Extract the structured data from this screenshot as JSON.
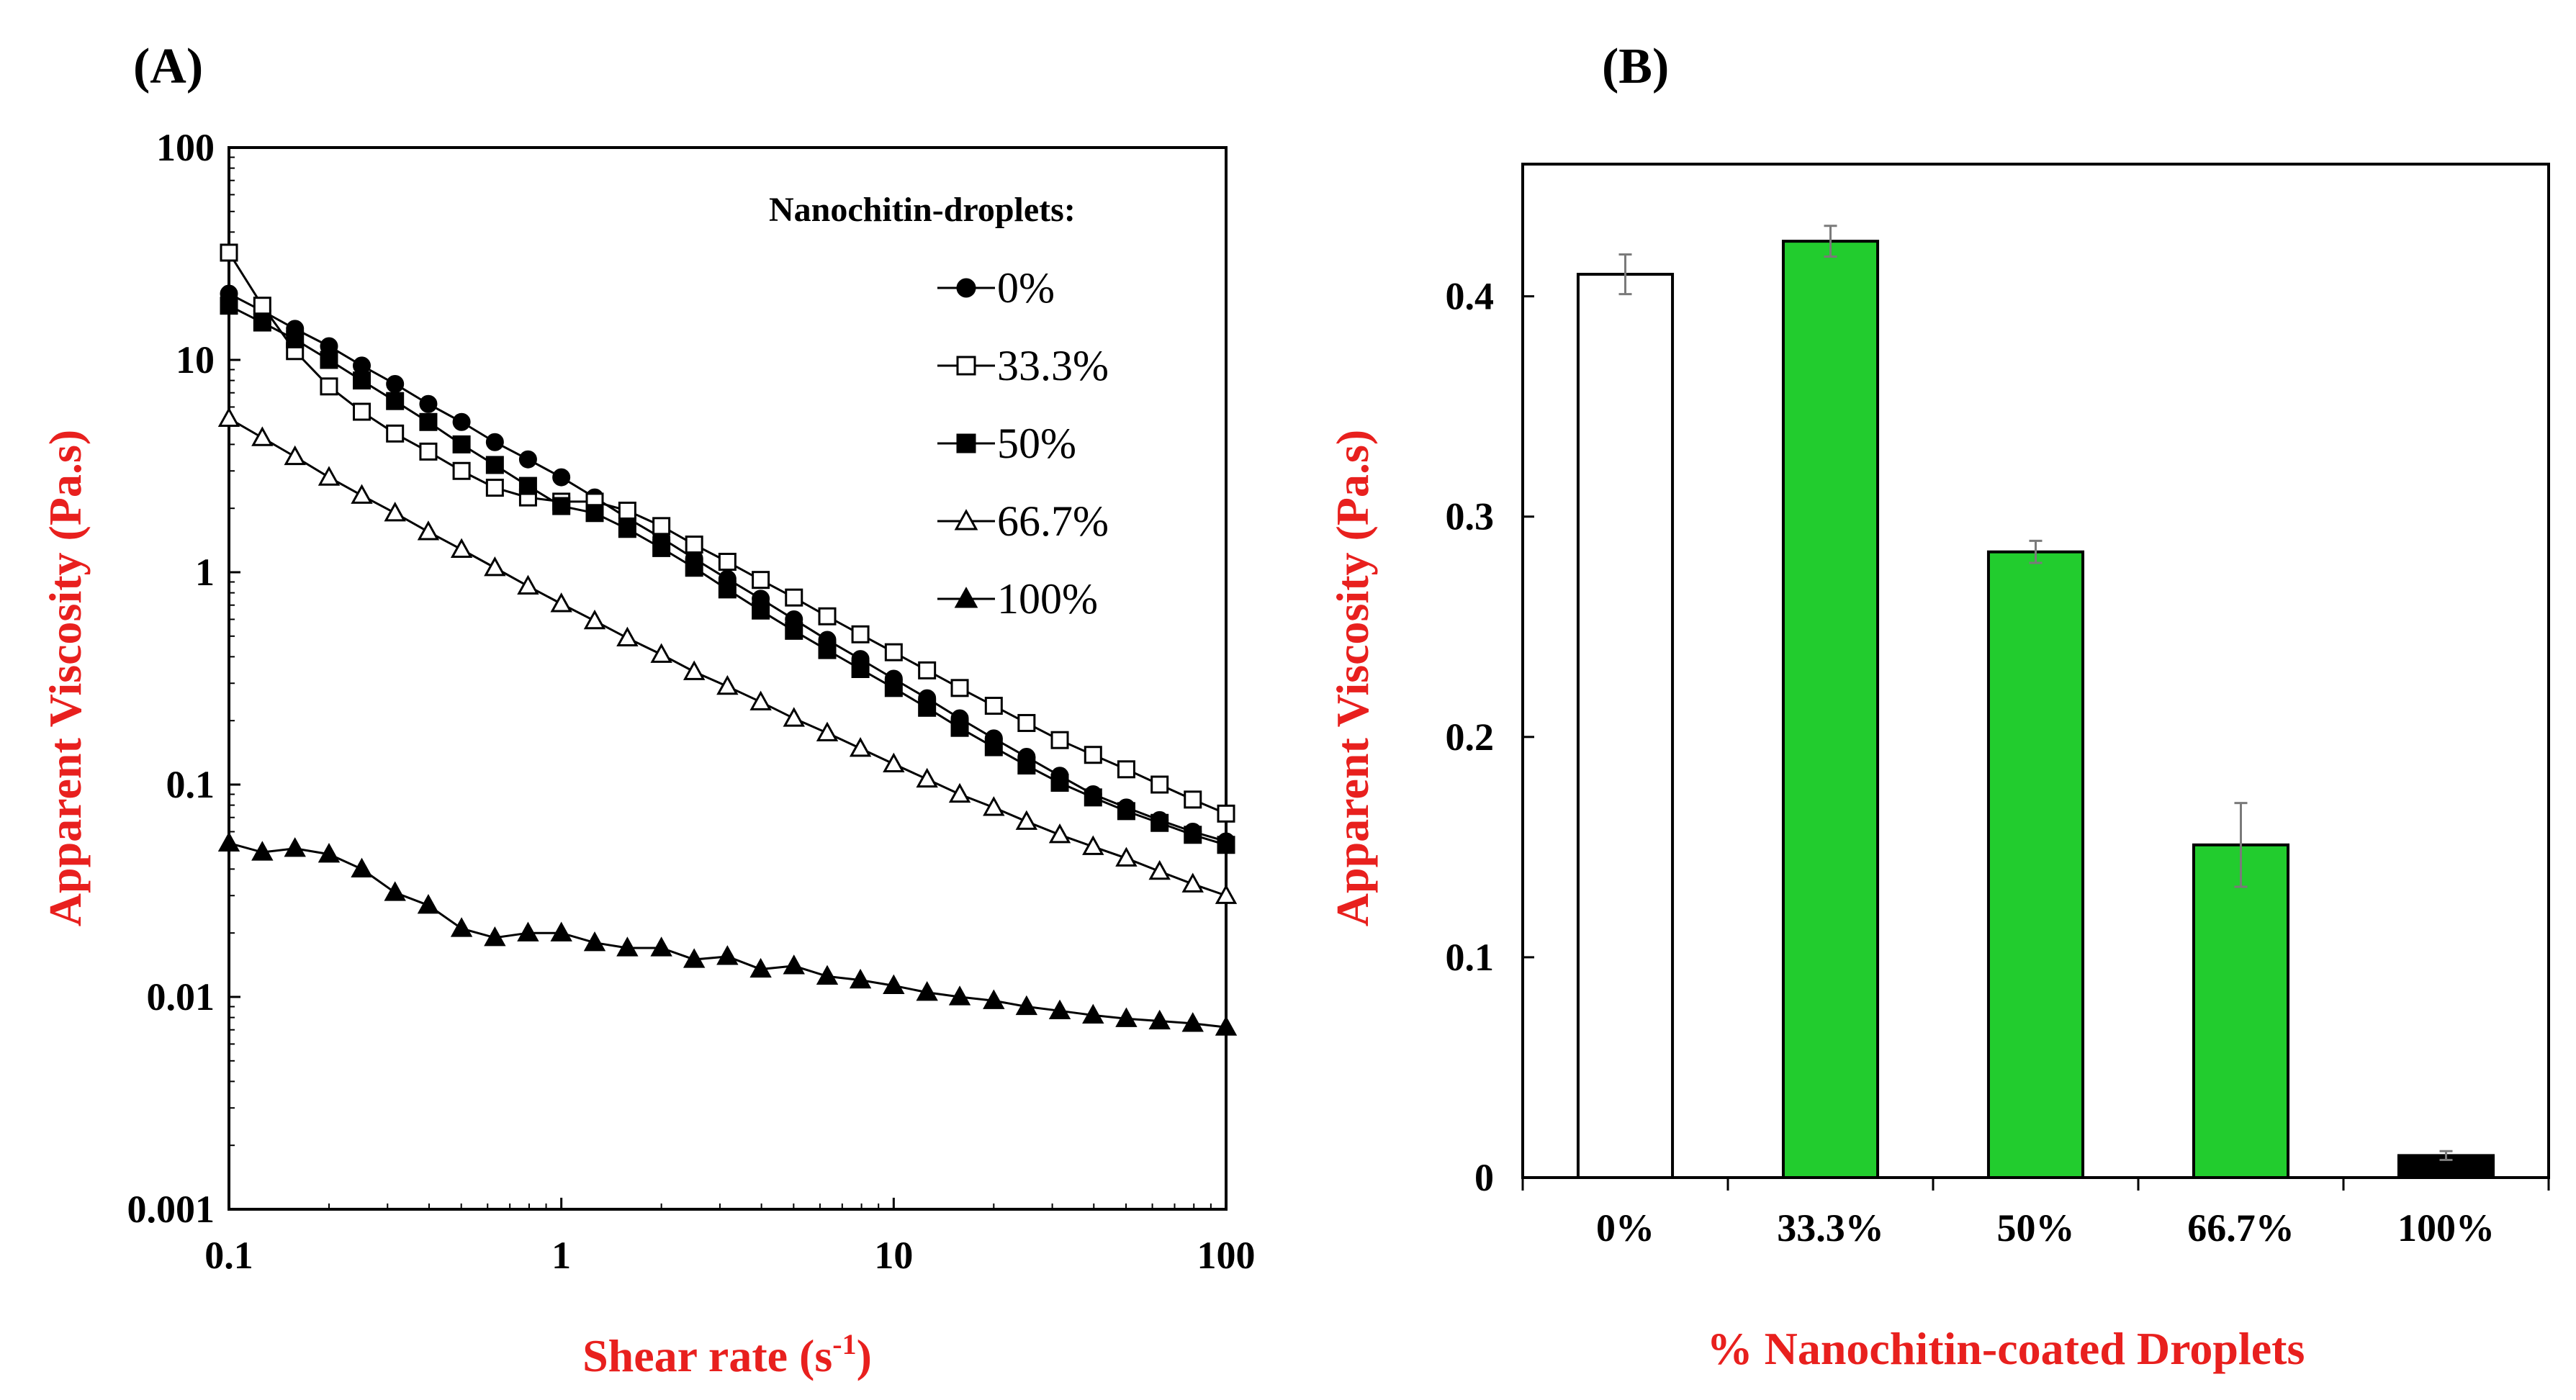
{
  "chart_data": [
    {
      "type": "line",
      "panel_label": "(A)",
      "xscale": "log",
      "yscale": "log",
      "xlim": [
        0.1,
        100
      ],
      "ylim": [
        0.001,
        100
      ],
      "xticks": [
        "0.1",
        "1",
        "10",
        "100"
      ],
      "yticks": [
        "0.001",
        "0.01",
        "0.1",
        "1",
        "10",
        "100"
      ],
      "xlabel_main": "Shear rate (s",
      "xlabel_sup": "-1",
      "xlabel_end": ")",
      "ylabel": "Apparent Viscosity (Pa.s)",
      "legend_title": "Nanochitin-droplets:",
      "legend_position": "top-right",
      "x": [
        0.1,
        0.126,
        0.158,
        0.2,
        0.251,
        0.316,
        0.398,
        0.501,
        0.631,
        0.794,
        1.0,
        1.26,
        1.58,
        2.0,
        2.51,
        3.16,
        3.98,
        5.01,
        6.31,
        7.94,
        10.0,
        12.6,
        15.8,
        20.0,
        25.1,
        31.6,
        39.8,
        50.1,
        63.1,
        79.4,
        100
      ],
      "series": [
        {
          "name": "0%",
          "marker": "filled-circle",
          "values": [
            20.5,
            17.0,
            14.0,
            11.6,
            9.4,
            7.7,
            6.2,
            5.1,
            4.1,
            3.4,
            2.8,
            2.25,
            1.8,
            1.45,
            1.16,
            0.93,
            0.75,
            0.6,
            0.48,
            0.39,
            0.315,
            0.255,
            0.205,
            0.165,
            0.135,
            0.11,
            0.09,
            0.078,
            0.068,
            0.06,
            0.054
          ]
        },
        {
          "name": "33.3%",
          "marker": "open-square",
          "values": [
            32.0,
            18.0,
            11.0,
            7.5,
            5.7,
            4.5,
            3.7,
            3.0,
            2.5,
            2.25,
            2.15,
            2.15,
            1.95,
            1.65,
            1.35,
            1.12,
            0.92,
            0.76,
            0.62,
            0.51,
            0.42,
            0.345,
            0.285,
            0.235,
            0.195,
            0.162,
            0.138,
            0.118,
            0.1,
            0.085,
            0.073
          ]
        },
        {
          "name": "50%",
          "marker": "filled-square",
          "values": [
            18.0,
            15.0,
            12.5,
            10.0,
            8.0,
            6.4,
            5.1,
            4.0,
            3.2,
            2.55,
            2.05,
            1.9,
            1.6,
            1.3,
            1.05,
            0.83,
            0.66,
            0.53,
            0.43,
            0.35,
            0.285,
            0.23,
            0.185,
            0.15,
            0.123,
            0.102,
            0.087,
            0.075,
            0.066,
            0.058,
            0.052
          ]
        },
        {
          "name": "66.7%",
          "marker": "open-triangle",
          "values": [
            5.3,
            4.3,
            3.5,
            2.8,
            2.3,
            1.9,
            1.55,
            1.28,
            1.05,
            0.86,
            0.71,
            0.59,
            0.49,
            0.41,
            0.34,
            0.29,
            0.245,
            0.205,
            0.175,
            0.148,
            0.125,
            0.106,
            0.09,
            0.078,
            0.067,
            0.058,
            0.051,
            0.045,
            0.039,
            0.034,
            0.03
          ]
        },
        {
          "name": "100%",
          "marker": "filled-triangle",
          "values": [
            0.053,
            0.048,
            0.05,
            0.047,
            0.04,
            0.031,
            0.027,
            0.021,
            0.019,
            0.02,
            0.02,
            0.018,
            0.017,
            0.017,
            0.015,
            0.0155,
            0.0135,
            0.014,
            0.0125,
            0.012,
            0.0113,
            0.0105,
            0.01,
            0.0096,
            0.009,
            0.0086,
            0.0082,
            0.0079,
            0.0077,
            0.0075,
            0.0072
          ]
        }
      ]
    },
    {
      "type": "bar",
      "panel_label": "(B)",
      "categories": [
        "0%",
        "33.3%",
        "50%",
        "66.7%",
        "100%"
      ],
      "values": [
        0.41,
        0.425,
        0.284,
        0.151,
        0.01
      ],
      "errors": [
        0.009,
        0.007,
        0.005,
        0.019,
        0.002
      ],
      "colors": [
        "#ffffff",
        "#22cc2e",
        "#22cc2e",
        "#22cc2e",
        "#000000"
      ],
      "ylim": [
        0,
        0.46
      ],
      "yticks": [
        0,
        0.1,
        0.2,
        0.3,
        0.4
      ],
      "ytick_labels": [
        "0",
        "0.1",
        "0.2",
        "0.3",
        "0.4"
      ],
      "xlabel": "% Nanochitin-coated Droplets",
      "ylabel": "Apparent Viscosity (Pa.s)"
    }
  ]
}
